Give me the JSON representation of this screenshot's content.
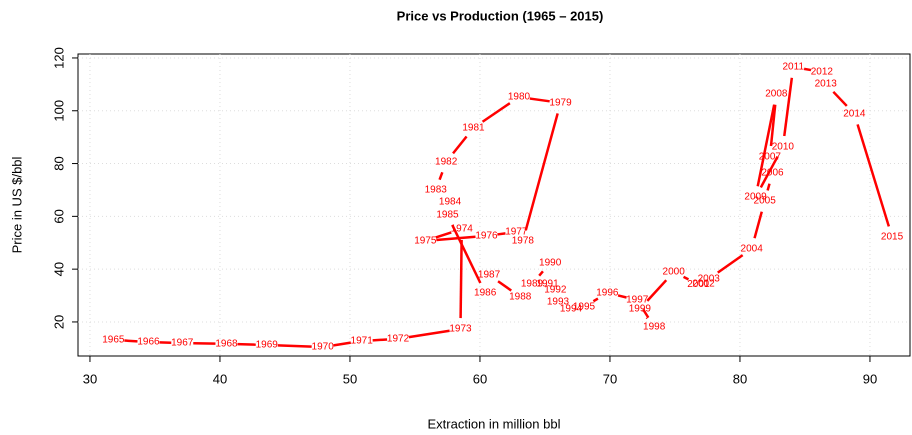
{
  "chart_data": {
    "type": "connected-scatter",
    "title": "Price vs Production (1965 – 2015)",
    "x_label": "Extraction in million bbl",
    "y_label": "Price in US $/bbl",
    "color": "#ff0000",
    "grid": true,
    "xlim": [
      29.08,
      93.08
    ],
    "ylim": [
      7.1,
      121.5
    ],
    "xticks": [
      30,
      40,
      50,
      60,
      70,
      80,
      90
    ],
    "yticks": [
      20,
      40,
      60,
      80,
      100,
      120
    ],
    "labels": [
      "1965",
      "1966",
      "1967",
      "1968",
      "1969",
      "1970",
      "1971",
      "1972",
      "1973",
      "1974",
      "1975",
      "1976",
      "1977",
      "1978",
      "1979",
      "1980",
      "1981",
      "1982",
      "1983",
      "1984",
      "1985",
      "1986",
      "1987",
      "1988",
      "1989",
      "1990",
      "1991",
      "1992",
      "1993",
      "1994",
      "1995",
      "1996",
      "1997",
      "1998",
      "1999",
      "2000",
      "2001",
      "2002",
      "2003",
      "2004",
      "2005",
      "2006",
      "2007",
      "2008",
      "2009",
      "2010",
      "2011",
      "2012",
      "2013",
      "2014",
      "2015"
    ],
    "x": [
      31.8,
      34.5,
      37.1,
      40.5,
      43.6,
      47.9,
      50.9,
      53.7,
      58.5,
      58.6,
      55.8,
      60.5,
      62.8,
      63.3,
      66.2,
      63.0,
      59.5,
      57.4,
      56.6,
      57.7,
      57.5,
      60.4,
      60.7,
      63.1,
      64.0,
      65.4,
      65.2,
      65.8,
      66.0,
      67.0,
      68.0,
      69.8,
      72.1,
      73.4,
      72.3,
      74.9,
      76.8,
      77.2,
      77.6,
      80.9,
      81.9,
      82.5,
      82.3,
      82.8,
      81.2,
      83.3,
      84.1,
      86.3,
      86.6,
      88.8,
      91.7
    ],
    "y": [
      13.2,
      12.4,
      12.0,
      11.7,
      11.3,
      10.5,
      12.8,
      13.6,
      17.3,
      55.2,
      50.7,
      52.6,
      54.1,
      50.7,
      103,
      105.2,
      93.5,
      80.6,
      70,
      65.5,
      60.5,
      31,
      37.8,
      29.5,
      34.4,
      42.3,
      34.4,
      32.1,
      27.6,
      24.9,
      25.7,
      31,
      28.3,
      18.1,
      24.9,
      38.9,
      34.3,
      34.5,
      36.3,
      47.7,
      65.8,
      76.4,
      82.5,
      106.4,
      67.3,
      86.3,
      116.6,
      114.7,
      110.2,
      98.8,
      52.2
    ]
  }
}
